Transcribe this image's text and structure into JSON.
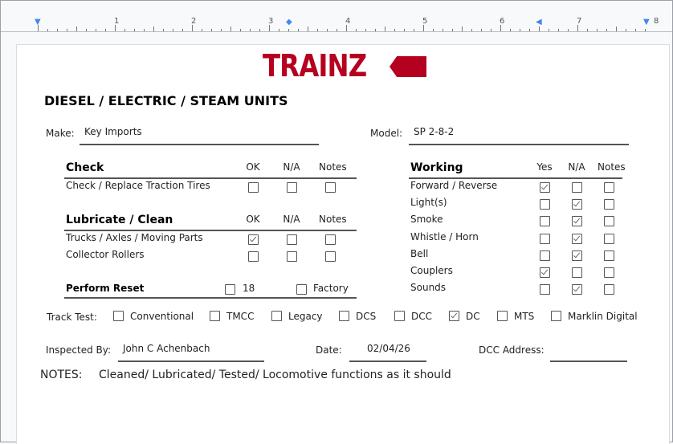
{
  "ruler": {
    "numbers": [
      "1",
      "2",
      "3",
      "4",
      "5",
      "6",
      "7",
      "8"
    ]
  },
  "logo": {
    "text": "TRAINZ",
    "color": "#b5001f"
  },
  "title": "DIESEL / ELECTRIC / STEAM UNITS",
  "make": {
    "label": "Make:",
    "value": "Key Imports"
  },
  "model": {
    "label": "Model:",
    "value": "SP 2-8-2"
  },
  "check": {
    "heading": "Check",
    "cols": [
      "OK",
      "N/A",
      "Notes"
    ],
    "rows": [
      {
        "label": "Check / Replace Traction Tires",
        "checked": [
          false,
          false,
          false
        ]
      }
    ]
  },
  "lubricate": {
    "heading": "Lubricate / Clean",
    "cols": [
      "OK",
      "N/A",
      "Notes"
    ],
    "rows": [
      {
        "label": "Trucks / Axles / Moving Parts",
        "checked": [
          true,
          false,
          false
        ]
      },
      {
        "label": "Collector Rollers",
        "checked": [
          false,
          false,
          false
        ]
      }
    ]
  },
  "reset": {
    "heading": "Perform Reset",
    "options": [
      {
        "label": "18",
        "checked": false
      },
      {
        "label": "Factory",
        "checked": false
      }
    ]
  },
  "working": {
    "heading": "Working",
    "cols": [
      "Yes",
      "N/A",
      "Notes"
    ],
    "rows": [
      {
        "label": "Forward / Reverse",
        "checked": [
          true,
          false,
          false
        ]
      },
      {
        "label": "Light(s)",
        "checked": [
          false,
          true,
          false
        ]
      },
      {
        "label": "Smoke",
        "checked": [
          false,
          true,
          false
        ]
      },
      {
        "label": "Whistle / Horn",
        "checked": [
          false,
          true,
          false
        ]
      },
      {
        "label": "Bell",
        "checked": [
          false,
          true,
          false
        ]
      },
      {
        "label": "Couplers",
        "checked": [
          true,
          false,
          false
        ]
      },
      {
        "label": "Sounds",
        "checked": [
          false,
          true,
          false
        ]
      }
    ]
  },
  "track_test": {
    "label": "Track Test:",
    "options": [
      {
        "label": "Conventional",
        "checked": false
      },
      {
        "label": "TMCC",
        "checked": false
      },
      {
        "label": "Legacy",
        "checked": false
      },
      {
        "label": "DCS",
        "checked": false
      },
      {
        "label": "DCC",
        "checked": false
      },
      {
        "label": "DC",
        "checked": true
      },
      {
        "label": "MTS",
        "checked": false
      },
      {
        "label": "Marklin Digital",
        "checked": false
      }
    ]
  },
  "inspected_by": {
    "label": "Inspected By:",
    "value": "John C Achenbach"
  },
  "date": {
    "label": "Date:",
    "value": "02/04/26"
  },
  "dcc_address": {
    "label": "DCC Address:",
    "value": ""
  },
  "notes": {
    "label": "NOTES:",
    "value": "Cleaned/ Lubricated/ Tested/ Locomotive functions as it should"
  }
}
